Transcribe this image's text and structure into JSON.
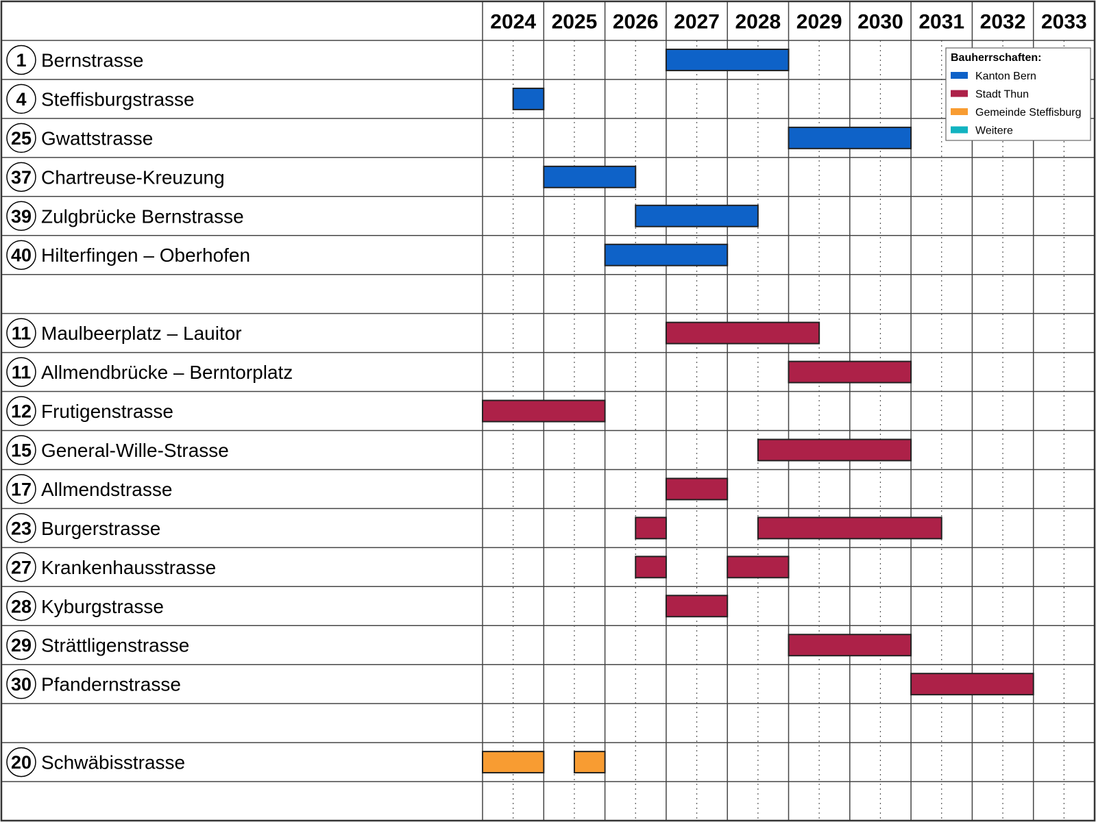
{
  "chart_data": {
    "type": "gantt",
    "years": [
      "2024",
      "2025",
      "2026",
      "2027",
      "2028",
      "2029",
      "2030",
      "2031",
      "2032",
      "2033"
    ],
    "x_range": [
      2024,
      2034
    ],
    "legend": {
      "title": "Bauherrschaften:",
      "placement": "top-right",
      "items": [
        {
          "key": "kanton",
          "label": "Kanton Bern",
          "color": "#0e62c8"
        },
        {
          "key": "stadt",
          "label": "Stadt Thun",
          "color": "#ad2148"
        },
        {
          "key": "gemeinde",
          "label": "Gemeinde Steffisburg",
          "color": "#f89c32"
        },
        {
          "key": "weitere",
          "label": "Weitere",
          "color": "#12b3c0"
        }
      ]
    },
    "rows": [
      {
        "num": "1",
        "label": "Bernstrasse",
        "owner": "kanton",
        "bars": [
          [
            2027.0,
            2029.0
          ]
        ]
      },
      {
        "num": "4",
        "label": "Steffisburgstrasse",
        "owner": "kanton",
        "bars": [
          [
            2024.5,
            2025.0
          ]
        ]
      },
      {
        "num": "25",
        "label": "Gwattstrasse",
        "owner": "kanton",
        "bars": [
          [
            2029.0,
            2031.0
          ]
        ]
      },
      {
        "num": "37",
        "label": "Chartreuse-Kreuzung",
        "owner": "kanton",
        "bars": [
          [
            2025.0,
            2026.5
          ]
        ]
      },
      {
        "num": "39",
        "label": "Zulgbrücke Bernstrasse",
        "owner": "kanton",
        "bars": [
          [
            2026.5,
            2028.5
          ]
        ]
      },
      {
        "num": "40",
        "label": "Hilterfingen – Oberhofen",
        "owner": "kanton",
        "bars": [
          [
            2026.0,
            2028.0
          ]
        ]
      },
      null,
      {
        "num": "11",
        "label": "Maulbeerplatz – Lauitor",
        "owner": "stadt",
        "bars": [
          [
            2027.0,
            2029.5
          ]
        ]
      },
      {
        "num": "11",
        "label": "Allmendbrücke – Berntorplatz",
        "owner": "stadt",
        "bars": [
          [
            2029.0,
            2031.0
          ]
        ]
      },
      {
        "num": "12",
        "label": "Frutigenstrasse",
        "owner": "stadt",
        "bars": [
          [
            2024.0,
            2026.0
          ]
        ]
      },
      {
        "num": "15",
        "label": "General-Wille-Strasse",
        "owner": "stadt",
        "bars": [
          [
            2028.5,
            2031.0
          ]
        ]
      },
      {
        "num": "17",
        "label": "Allmendstrasse",
        "owner": "stadt",
        "bars": [
          [
            2027.0,
            2028.0
          ]
        ]
      },
      {
        "num": "23",
        "label": "Burgerstrasse",
        "owner": "stadt",
        "bars": [
          [
            2026.5,
            2027.0
          ],
          [
            2028.5,
            2031.5
          ]
        ]
      },
      {
        "num": "27",
        "label": "Krankenhausstrasse",
        "owner": "stadt",
        "bars": [
          [
            2026.5,
            2027.0
          ],
          [
            2028.0,
            2029.0
          ]
        ]
      },
      {
        "num": "28",
        "label": "Kyburgstrasse",
        "owner": "stadt",
        "bars": [
          [
            2027.0,
            2028.0
          ]
        ]
      },
      {
        "num": "29",
        "label": "Strättligenstrasse",
        "owner": "stadt",
        "bars": [
          [
            2029.0,
            2031.0
          ]
        ]
      },
      {
        "num": "30",
        "label": "Pfandernstrasse",
        "owner": "stadt",
        "bars": [
          [
            2031.0,
            2033.0
          ]
        ]
      },
      null,
      {
        "num": "20",
        "label": "Schwäbisstrasse",
        "owner": "gemeinde",
        "bars": [
          [
            2024.0,
            2025.0
          ],
          [
            2025.5,
            2026.0
          ]
        ]
      },
      null
    ]
  }
}
